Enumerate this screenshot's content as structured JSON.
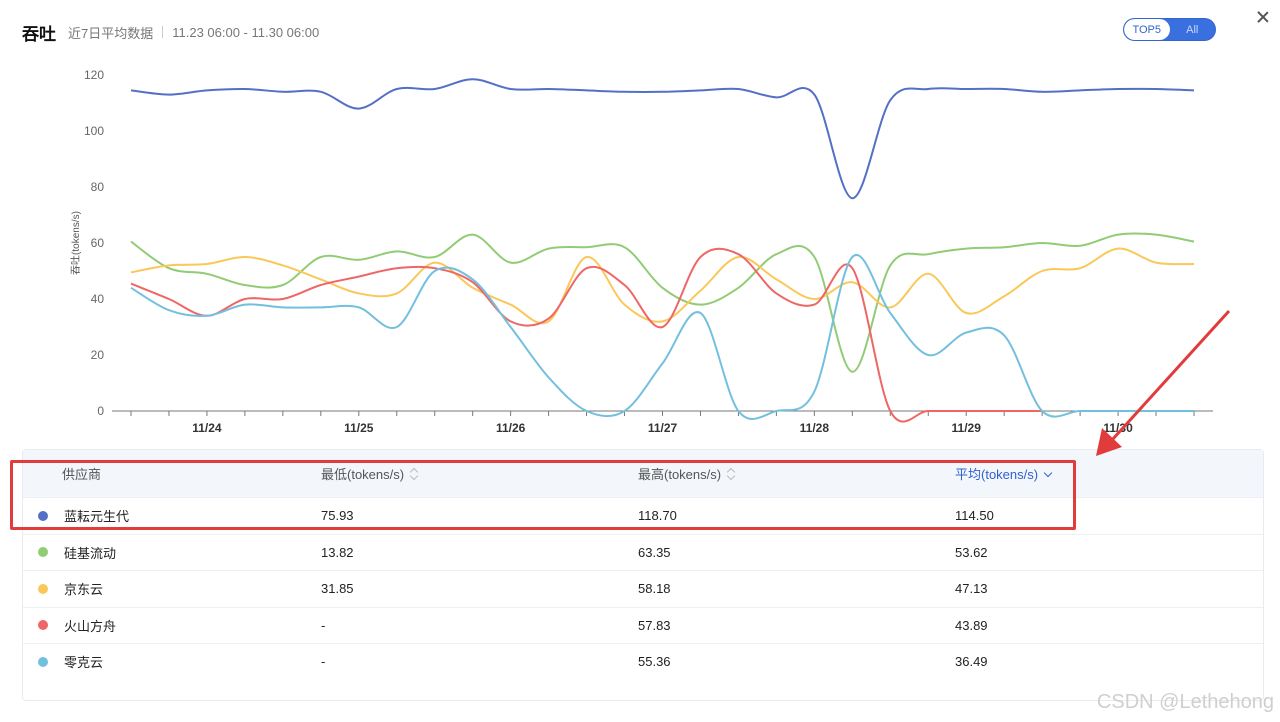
{
  "header": {
    "title": "吞吐",
    "subtitle": "近7日平均数据",
    "range": "11.23 06:00 - 11.30 06:00"
  },
  "toggle": {
    "options": [
      "TOP5",
      "All"
    ],
    "active": "TOP5"
  },
  "chart_data": {
    "type": "line",
    "ylabel": "吞吐(tokens/s)",
    "ylim": [
      0,
      120
    ],
    "yticks": [
      "0",
      "20",
      "40",
      "60",
      "80",
      "100",
      "120"
    ],
    "xticks": [
      "11/24",
      "11/25",
      "11/26",
      "11/27",
      "11/28",
      "11/29",
      "11/30"
    ],
    "x": [
      0,
      0.5,
      1,
      1.5,
      2,
      2.5,
      3,
      3.5,
      4,
      4.5,
      5,
      5.5,
      6,
      6.5,
      7,
      7.5,
      8,
      8.5,
      9,
      9.5,
      10,
      10.5,
      11,
      11.5,
      12,
      12.5,
      13,
      13.5,
      14
    ],
    "series": [
      {
        "name": "蓝耘元生代",
        "color": "#5470c6",
        "values": [
          114.5,
          113,
          114.5,
          115,
          114,
          114,
          108,
          115,
          115,
          118.5,
          115,
          115,
          114.5,
          114,
          114,
          114.5,
          115,
          112,
          113,
          76,
          111,
          115,
          115,
          115,
          114,
          114.5,
          115,
          115,
          114.5
        ]
      },
      {
        "name": "硅基流动",
        "color": "#91cc75",
        "values": [
          60.5,
          51,
          49,
          45,
          45,
          55,
          54,
          57,
          55,
          63,
          53,
          58,
          58.5,
          58.5,
          44,
          38,
          44,
          56,
          55,
          14,
          52,
          56,
          58,
          58.5,
          60,
          59,
          63,
          63,
          60.5
        ]
      },
      {
        "name": "京东云",
        "color": "#fac858",
        "values": [
          49.5,
          52,
          52.5,
          55,
          52,
          47,
          42,
          42,
          53,
          44,
          38,
          32,
          55,
          38,
          32,
          43,
          55,
          47,
          40,
          46,
          37,
          49,
          35,
          41,
          50,
          51,
          58,
          53,
          52.5
        ]
      },
      {
        "name": "火山方舟",
        "color": "#ee6666",
        "values": [
          45.5,
          40,
          34,
          40,
          40,
          45,
          48,
          51,
          51,
          46,
          32,
          33,
          51,
          45,
          30,
          55,
          56,
          42,
          38,
          51,
          0,
          0,
          0,
          0,
          0,
          null,
          null,
          null,
          null
        ]
      },
      {
        "name": "零克云",
        "color": "#73c0de",
        "values": [
          44,
          36,
          34,
          38,
          37,
          37,
          37,
          30,
          50,
          47,
          30,
          12,
          0,
          0,
          17,
          35,
          0,
          0,
          7,
          55,
          35,
          20,
          28,
          27,
          0,
          0,
          0,
          0,
          0
        ]
      }
    ]
  },
  "table": {
    "headers": {
      "vendor": "供应商",
      "min": "最低(tokens/s)",
      "max": "最高(tokens/s)",
      "avg": "平均(tokens/s)"
    },
    "rows": [
      {
        "name": "蓝耘元生代",
        "min": "75.93",
        "max": "118.70",
        "avg": "114.50",
        "color": "#5470c6"
      },
      {
        "name": "硅基流动",
        "min": "13.82",
        "max": "63.35",
        "avg": "53.62",
        "color": "#91cc75"
      },
      {
        "name": "京东云",
        "min": "31.85",
        "max": "58.18",
        "avg": "47.13",
        "color": "#fac858"
      },
      {
        "name": "火山方舟",
        "min": "-",
        "max": "57.83",
        "avg": "43.89",
        "color": "#ee6666"
      },
      {
        "name": "零克云",
        "min": "-",
        "max": "55.36",
        "avg": "36.49",
        "color": "#73c0de"
      }
    ]
  },
  "watermark": "CSDN @Lethehong"
}
